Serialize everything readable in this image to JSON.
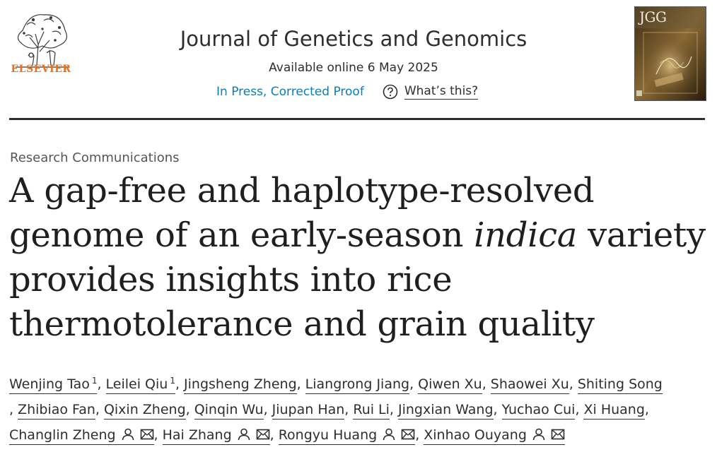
{
  "header": {
    "publisher_logo_text": "ELSEVIER",
    "journal_title": "Journal of Genetics and Genomics",
    "available_online": "Available online 6 May 2025",
    "status": "In Press, Corrected Proof",
    "whats_this": "What’s this?",
    "cover_label": "JGG"
  },
  "article": {
    "type": "Research Communications",
    "title_part1": "A gap-free and haplotype-resolved genome of an early-season ",
    "title_italic": "indica",
    "title_part2": " variety provides insights into rice thermotolerance and grain quality"
  },
  "authors": {
    "line1": [
      {
        "name": "Wenjing Tao",
        "sup": "1"
      },
      {
        "name": "Leilei Qiu",
        "sup": "1"
      },
      {
        "name": "Jingsheng Zheng"
      },
      {
        "name": "Liangrong Jiang"
      },
      {
        "name": "Qiwen Xu"
      },
      {
        "name": "Shaowei Xu"
      },
      {
        "name": "Shiting Song"
      }
    ],
    "line2": [
      {
        "name": "Zhibiao Fan"
      },
      {
        "name": "Qixin Zheng"
      },
      {
        "name": "Qinqin Wu"
      },
      {
        "name": "Jiupan Han"
      },
      {
        "name": "Rui Li"
      },
      {
        "name": "Jingxian Wang"
      },
      {
        "name": "Yuchao Cui"
      },
      {
        "name": "Xi Huang"
      }
    ],
    "line3": [
      {
        "name": "Changlin Zheng",
        "icons": [
          "person-icon",
          "email-icon"
        ]
      },
      {
        "name": "Hai Zhang",
        "icons": [
          "person-icon",
          "email-icon"
        ]
      },
      {
        "name": "Rongyu Huang",
        "icons": [
          "person-icon",
          "email-icon"
        ]
      },
      {
        "name": "Xinhao Ouyang",
        "icons": [
          "person-icon",
          "email-icon"
        ]
      }
    ],
    "separator": ","
  }
}
